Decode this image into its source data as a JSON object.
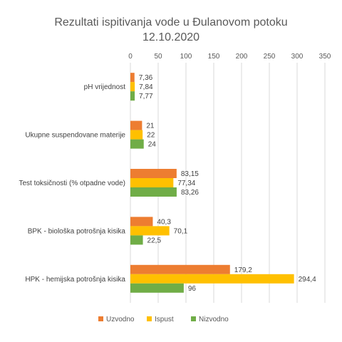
{
  "chart_data": {
    "type": "bar",
    "orientation": "horizontal",
    "title": "Rezultati ispitivanja vode u Đulanovom potoku",
    "subtitle": "12.10.2020",
    "xlim": [
      0,
      350
    ],
    "x_ticks": [
      "0",
      "50",
      "100",
      "150",
      "200",
      "250",
      "300",
      "350"
    ],
    "x_axis_position": "top",
    "grid": true,
    "legend_position": "bottom",
    "categories": [
      "pH vrijednost",
      "Ukupne suspendovane materije",
      "Test toksičnosti (% otpadne vode)",
      "BPK - biološka potrošnja kisika",
      "HPK - hemijska potrošnja kisika"
    ],
    "series": [
      {
        "name": "Uzvodno",
        "color": "#ED7D31",
        "values": [
          7.36,
          21,
          83.15,
          40.3,
          179.2
        ],
        "labels": [
          "7,36",
          "21",
          "83,15",
          "40,3",
          "179,2"
        ]
      },
      {
        "name": "Ispust",
        "color": "#FFC000",
        "values": [
          7.84,
          22,
          77.34,
          70.1,
          294.4
        ],
        "labels": [
          "7,84",
          "22",
          "77,34",
          "70,1",
          "294,4"
        ]
      },
      {
        "name": "Nizvodno",
        "color": "#70AD47",
        "values": [
          7.77,
          24,
          83.26,
          22.5,
          96
        ],
        "labels": [
          "7,77",
          "24",
          "83,26",
          "22,5",
          "96"
        ]
      }
    ]
  }
}
